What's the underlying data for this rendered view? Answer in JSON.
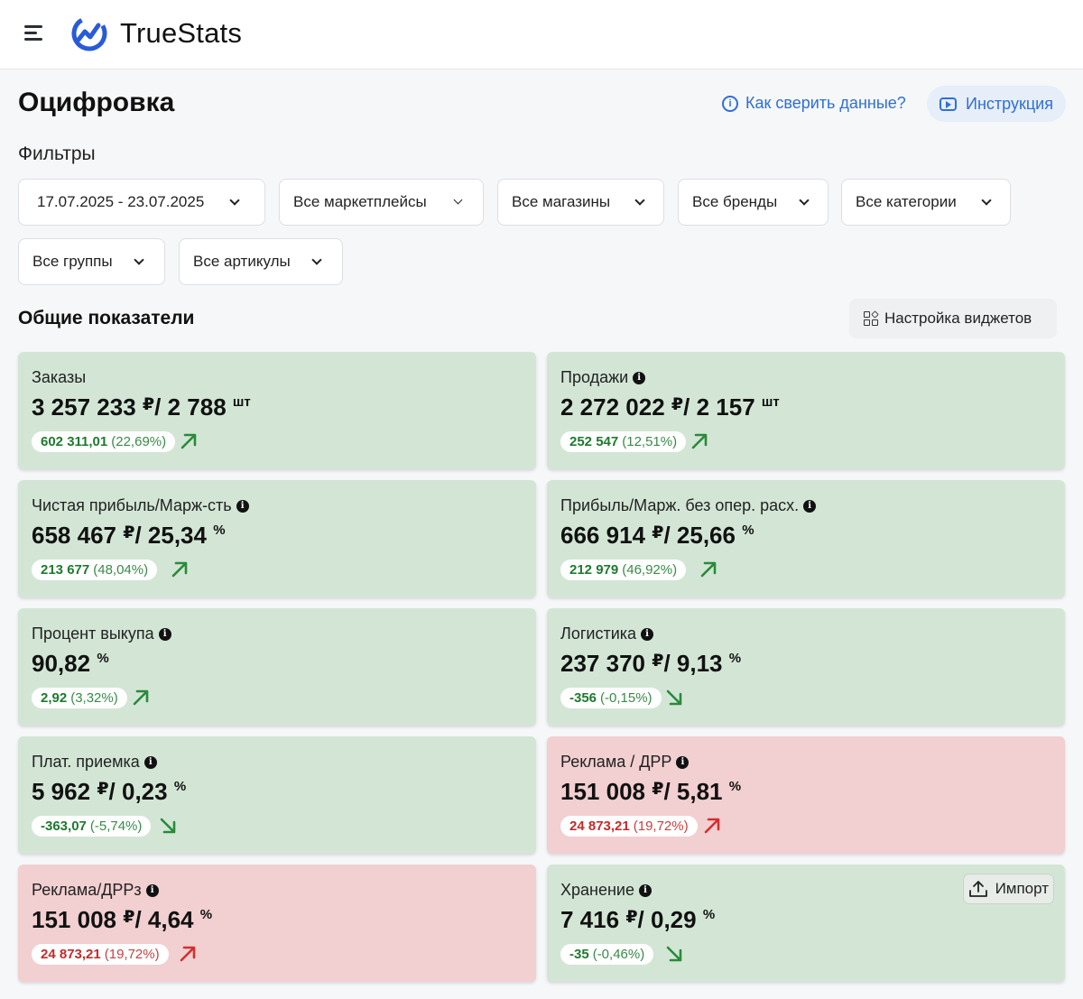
{
  "app": {
    "brand": "TrueStats",
    "logo_icon": "chart-logo-icon",
    "menu_icon": "hamburger-menu-icon"
  },
  "header": {
    "title": "Оцифровка",
    "help_link": "Как сверить данные?",
    "instruction_button": "Инструкция"
  },
  "filters": {
    "label": "Фильтры",
    "date_range": "17.07.2025 - 23.07.2025",
    "marketplaces": "Все маркетплейсы",
    "stores": "Все магазины",
    "brands": "Все бренды",
    "categories": "Все категории",
    "groups": "Все группы",
    "articles": "Все артикулы"
  },
  "metrics": {
    "section_title": "Общие показатели",
    "widget_settings": "Настройка виджетов",
    "import_button": "Импорт",
    "cards": [
      {
        "label": "Заказы",
        "info": false,
        "main": "3 257 233",
        "u1": "₽",
        "sep": "/ ",
        "second": "2 788",
        "u2": "шт",
        "delta": "602 311,01",
        "pct": "(22,69%)",
        "trend": "up",
        "status": "good"
      },
      {
        "label": "Продажи",
        "info": true,
        "main": "2 272 022",
        "u1": "₽",
        "sep": "/ ",
        "second": "2 157",
        "u2": "шт",
        "delta": "252 547",
        "pct": "(12,51%)",
        "trend": "up",
        "status": "good"
      },
      {
        "label": "Чистая прибыль/Марж-сть",
        "info": true,
        "main": "658 467",
        "u1": "₽",
        "sep": "/ ",
        "second": "25,34",
        "u2": "%",
        "delta": "213 677",
        "pct": "(48,04%)",
        "trend": "up",
        "status": "good"
      },
      {
        "label": "Прибыль/Марж. без опер. расх.",
        "info": true,
        "main": "666 914",
        "u1": "₽",
        "sep": "/ ",
        "second": "25,66",
        "u2": "%",
        "delta": "212 979",
        "pct": "(46,92%)",
        "trend": "up",
        "status": "good"
      },
      {
        "label": "Процент выкупа",
        "info": true,
        "main": "90,82",
        "u1": "%",
        "sep": "",
        "second": "",
        "u2": "",
        "delta": "2,92",
        "pct": "(3,32%)",
        "trend": "up",
        "status": "good"
      },
      {
        "label": "Логистика",
        "info": true,
        "main": "237 370",
        "u1": "₽",
        "sep": "/ ",
        "second": "9,13",
        "u2": "%",
        "delta": "-356",
        "pct": "(-0,15%)",
        "trend": "down",
        "status": "good"
      },
      {
        "label": "Плат. приемка",
        "info": true,
        "main": "5 962",
        "u1": "₽",
        "sep": "/ ",
        "second": "0,23",
        "u2": "%",
        "delta": "-363,07",
        "pct": "(-5,74%)",
        "trend": "down",
        "status": "good"
      },
      {
        "label": "Реклама / ДРР",
        "info": true,
        "main": "151 008",
        "u1": "₽",
        "sep": "/ ",
        "second": "5,81",
        "u2": "%",
        "delta": "24 873,21",
        "pct": "(19,72%)",
        "trend": "up",
        "status": "bad"
      },
      {
        "label": "Реклама/ДРРз",
        "info": true,
        "main": "151 008",
        "u1": "₽",
        "sep": "/ ",
        "second": "4,64",
        "u2": "%",
        "delta": "24 873,21",
        "pct": "(19,72%)",
        "trend": "up",
        "status": "bad"
      },
      {
        "label": "Хранение",
        "info": true,
        "main": "7 416",
        "u1": "₽",
        "sep": "/ ",
        "second": "0,29",
        "u2": "%",
        "delta": "-35",
        "pct": "(-0,46%)",
        "trend": "down",
        "status": "good"
      }
    ]
  }
}
